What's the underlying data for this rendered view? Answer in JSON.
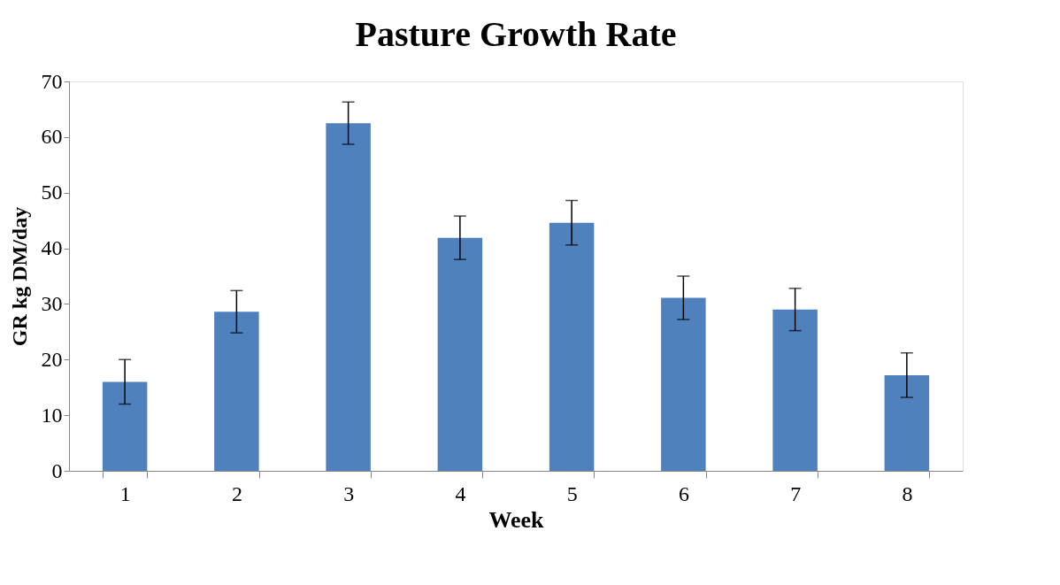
{
  "chart_data": {
    "type": "bar",
    "title": "Pasture Growth Rate",
    "xlabel": "Week",
    "ylabel": "GR kg DM/day",
    "categories": [
      "1",
      "2",
      "3",
      "4",
      "5",
      "6",
      "7",
      "8"
    ],
    "values": [
      16.0,
      28.6,
      62.5,
      41.9,
      44.6,
      31.1,
      29.0,
      17.2
    ],
    "errors": [
      4.0,
      3.8,
      3.8,
      3.9,
      4.0,
      3.9,
      3.8,
      4.0
    ],
    "color": "#4f81bd",
    "ylim": [
      0,
      70
    ],
    "yticks": [
      0,
      10,
      20,
      30,
      40,
      50,
      60,
      70
    ],
    "grid": false
  }
}
